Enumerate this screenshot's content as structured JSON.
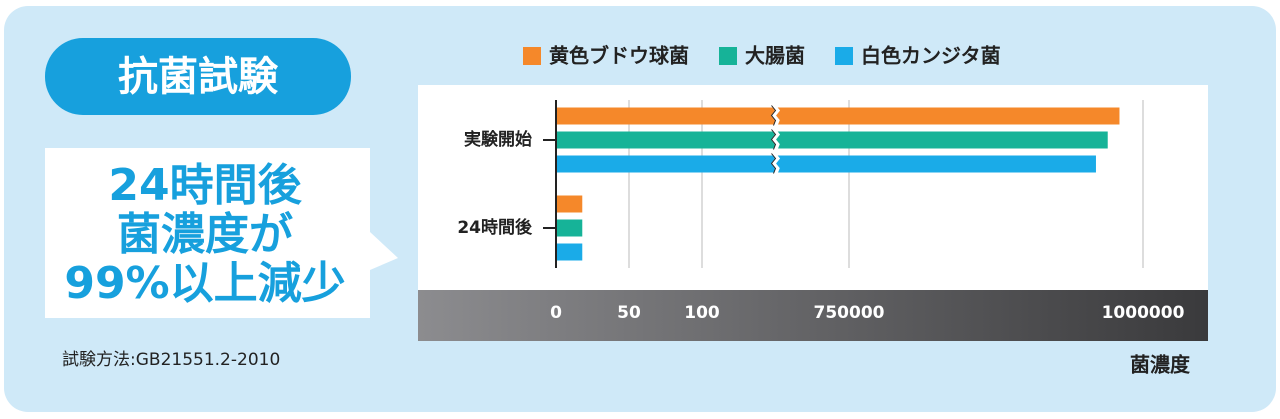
{
  "heading": "抗菌試験",
  "callout": [
    "24時間後",
    "菌濃度が",
    "99%以上減少"
  ],
  "note": "試験方法:GB21551.2-2010",
  "chart_data": {
    "type": "bar",
    "orientation": "horizontal",
    "categories": [
      "実験開始",
      "24時間後"
    ],
    "series": [
      {
        "name": "黄色ブドウ球菌",
        "color": "#f5882a",
        "values": [
          980000,
          18
        ]
      },
      {
        "name": "大腸菌",
        "color": "#16b398",
        "values": [
          970000,
          18
        ]
      },
      {
        "name": "白色カンジタ菌",
        "color": "#1aabe8",
        "values": [
          960000,
          18
        ]
      }
    ],
    "xlim": [
      0,
      1000000
    ],
    "x_break": [
      100,
      750000
    ],
    "xticks": [
      0,
      50,
      100,
      750000,
      1000000
    ],
    "xlabel": "菌濃度",
    "grid": true
  }
}
